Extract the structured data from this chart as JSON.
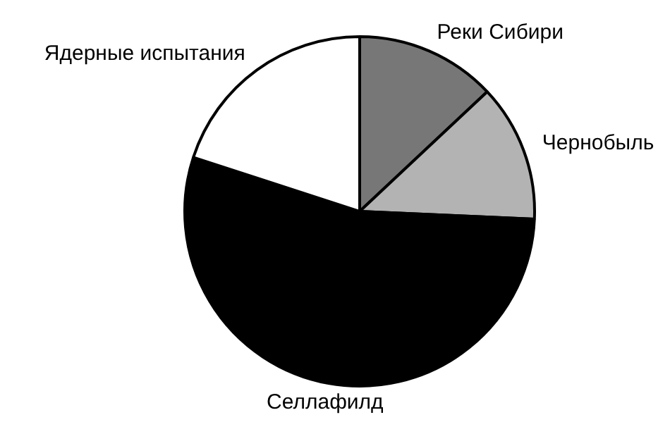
{
  "chart_data": {
    "type": "pie",
    "categories": [
      "Реки Сибири",
      "Чернобыль",
      "Селлафилд",
      "Ядерные испытания"
    ],
    "values": [
      13,
      12.7,
      54.3,
      20
    ],
    "colors": [
      "#777777",
      "#b3b3b3",
      "#000000",
      "#ffffff"
    ],
    "legend": false
  }
}
